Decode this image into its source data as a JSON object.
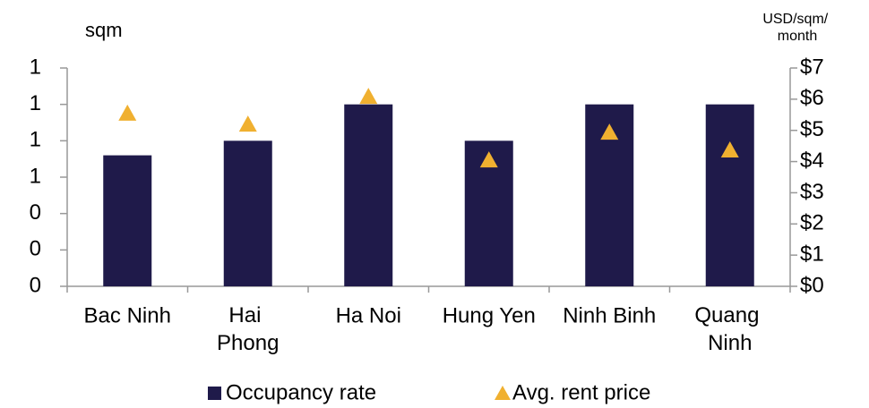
{
  "chart_data": {
    "type": "bar",
    "y_label": "sqm",
    "y2_label": "USD/sqm/\nmonth",
    "categories": [
      "Bac Ninh",
      "Hai\nPhong",
      "Ha Noi",
      "Hung Yen",
      "Ninh Binh",
      "Quang\nNinh"
    ],
    "series": [
      {
        "name": "Occupancy rate",
        "type": "bar",
        "color": "#1f1a4a",
        "values": [
          0.72,
          0.8,
          1.0,
          0.8,
          1.0,
          1.0
        ]
      },
      {
        "name": "Avg. rent price",
        "type": "marker",
        "axis": "y2",
        "color": "#f0b030",
        "values": [
          5.54,
          5.19,
          6.08,
          4.04,
          4.93,
          4.36
        ]
      }
    ],
    "ylim": [
      0,
      1.2
    ],
    "yticks": [
      {
        "value": 0,
        "label": "0"
      },
      {
        "value": 0.2,
        "label": "0"
      },
      {
        "value": 0.4,
        "label": "0"
      },
      {
        "value": 0.6,
        "label": "1"
      },
      {
        "value": 0.8,
        "label": "1"
      },
      {
        "value": 1.0,
        "label": "1"
      },
      {
        "value": 1.2,
        "label": "1"
      }
    ],
    "y2lim": [
      0,
      7
    ],
    "y2ticks": [
      {
        "value": 0,
        "label": "$0"
      },
      {
        "value": 1,
        "label": "$1"
      },
      {
        "value": 2,
        "label": "$2"
      },
      {
        "value": 3,
        "label": "$3"
      },
      {
        "value": 4,
        "label": "$4"
      },
      {
        "value": 5,
        "label": "$5"
      },
      {
        "value": 6,
        "label": "$6"
      },
      {
        "value": 7,
        "label": "$7"
      }
    ],
    "grid": false,
    "legend": "bottom"
  }
}
